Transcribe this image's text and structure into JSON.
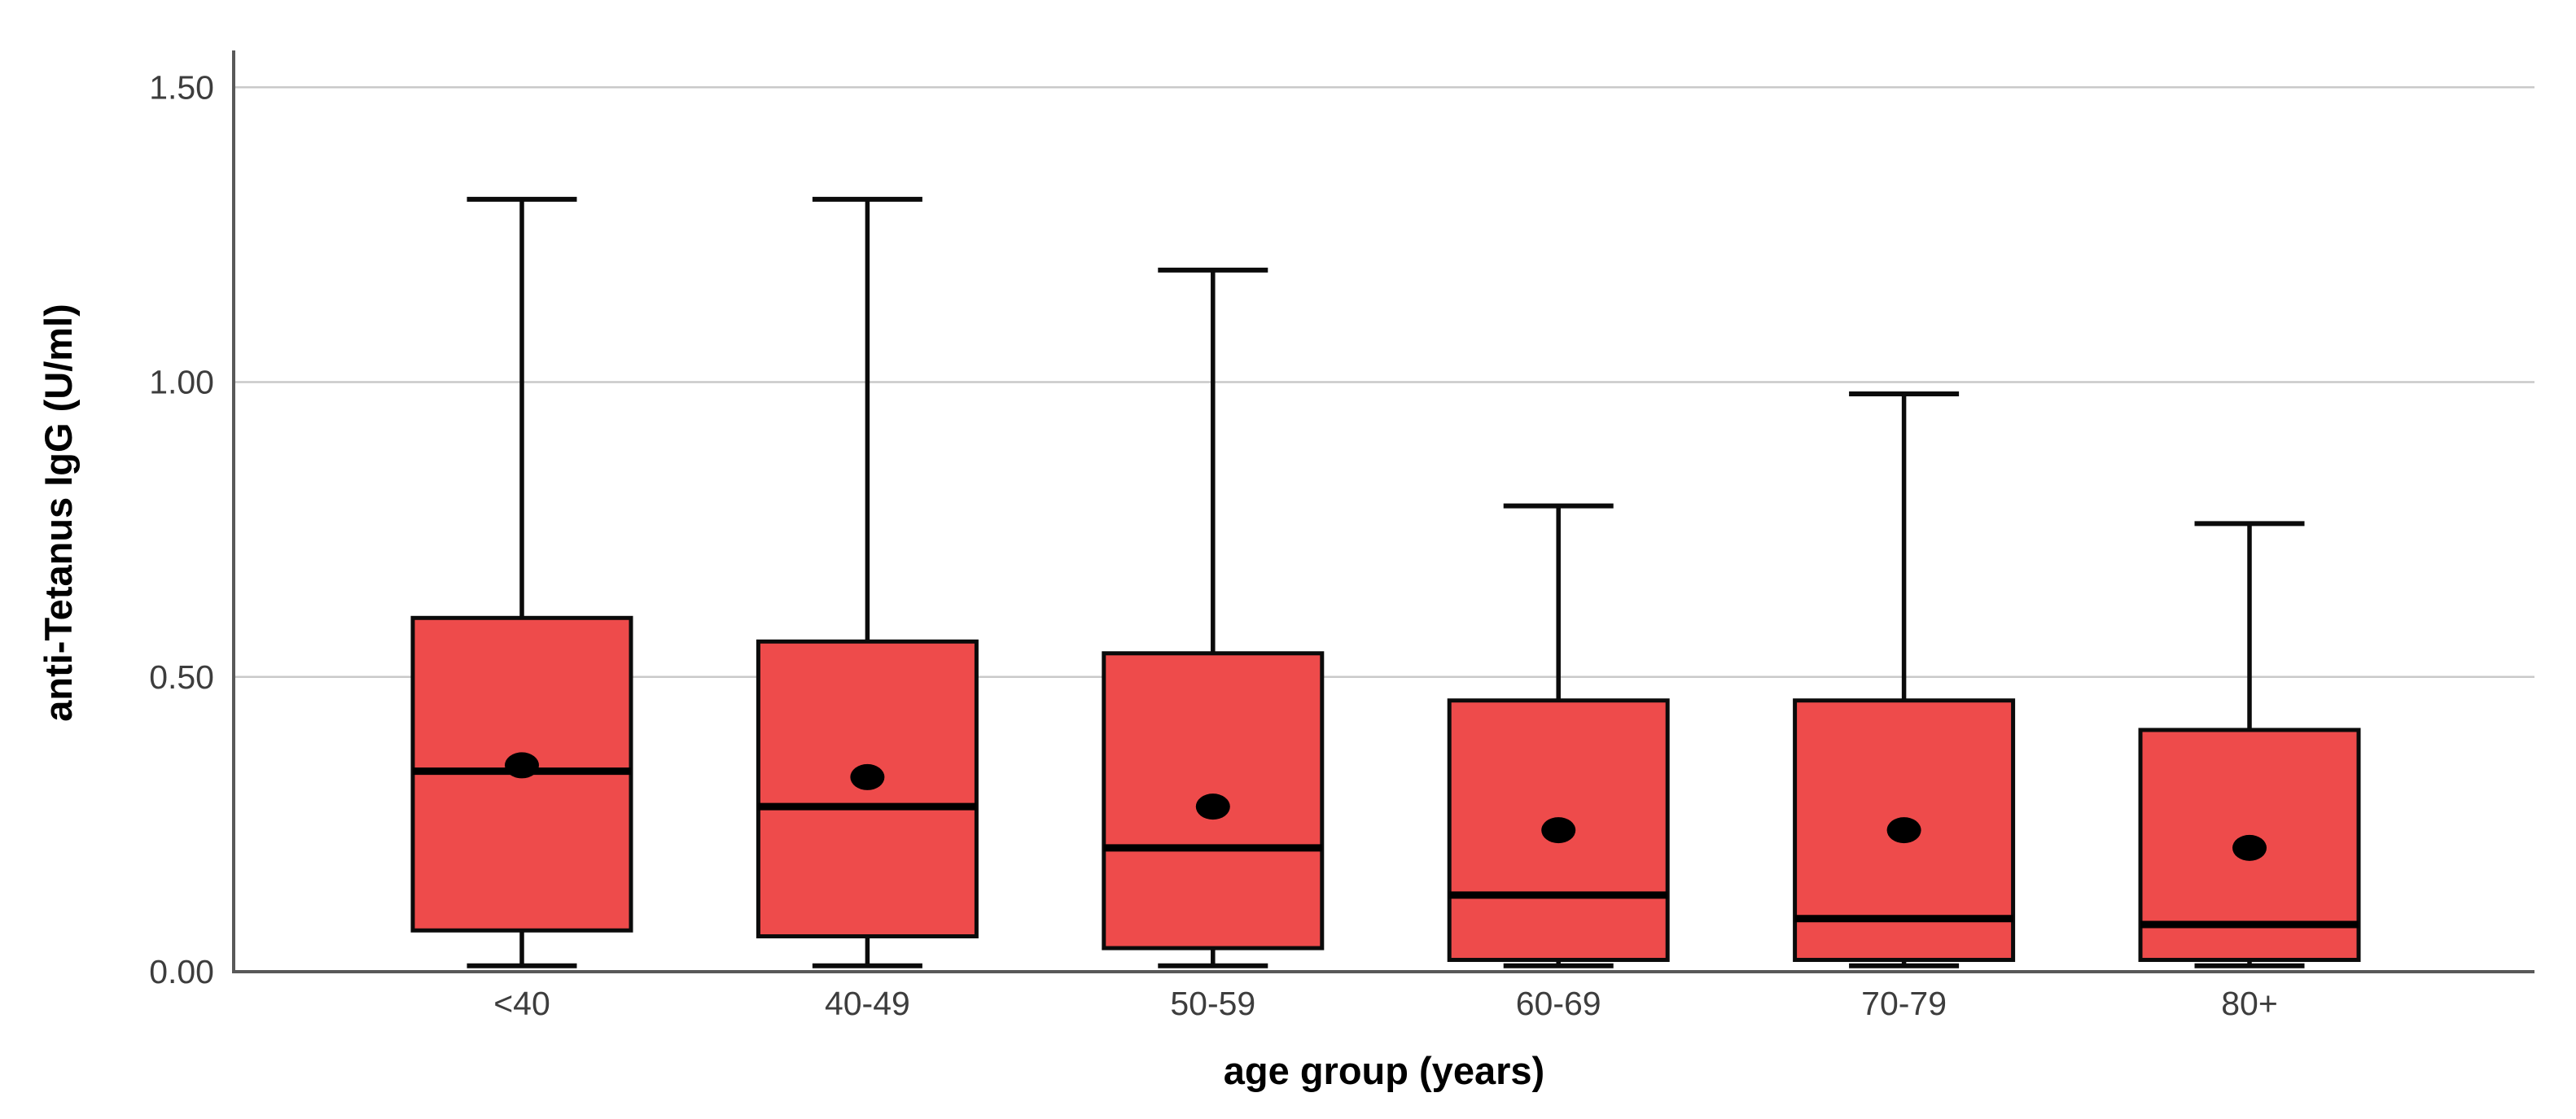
{
  "figure": {
    "background": "#ffffff",
    "y_axis": {
      "title": "anti-Tetanus IgG (U/ml)",
      "tick_labels": [
        "0.00",
        "0.50",
        "1.00",
        "1.50"
      ],
      "tick_values": [
        0.0,
        0.5,
        1.0,
        1.5
      ]
    },
    "x_axis": {
      "title": "age group (years)",
      "categories": [
        "<40",
        "40-49",
        "50-59",
        "60-69",
        "70-79",
        "80+"
      ]
    },
    "colors": {
      "box_fill": "#ee4b4b",
      "box_stroke": "#0b0b0b",
      "median_line": "#000000",
      "mean_dot": "#000000",
      "gridline": "#c9c9c9",
      "axis_line": "#595959",
      "tick_label": "#3d3d3d",
      "axis_title": "#000000"
    }
  },
  "chart_data": {
    "type": "boxplot",
    "title": "",
    "xlabel": "age group (years)",
    "ylabel": "anti-Tetanus IgG (U/ml)",
    "ylim": [
      0,
      1.56
    ],
    "yticks": [
      0.0,
      0.5,
      1.0,
      1.5
    ],
    "ytick_labels": [
      "0.00",
      "0.50",
      "1.00",
      "1.50"
    ],
    "grid": "horizontal",
    "legend": "none",
    "categories": [
      "<40",
      "40-49",
      "50-59",
      "60-69",
      "70-79",
      "80+"
    ],
    "series": [
      {
        "category": "<40",
        "min": 0.01,
        "q1": 0.07,
        "median": 0.34,
        "mean": 0.35,
        "q3": 0.6,
        "max": 1.31
      },
      {
        "category": "40-49",
        "min": 0.01,
        "q1": 0.06,
        "median": 0.28,
        "mean": 0.33,
        "q3": 0.56,
        "max": 1.31
      },
      {
        "category": "50-59",
        "min": 0.01,
        "q1": 0.04,
        "median": 0.21,
        "mean": 0.28,
        "q3": 0.54,
        "max": 1.19
      },
      {
        "category": "60-69",
        "min": 0.01,
        "q1": 0.02,
        "median": 0.13,
        "mean": 0.24,
        "q3": 0.46,
        "max": 0.79
      },
      {
        "category": "70-79",
        "min": 0.01,
        "q1": 0.02,
        "median": 0.09,
        "mean": 0.24,
        "q3": 0.46,
        "max": 0.98
      },
      {
        "category": "80+",
        "min": 0.01,
        "q1": 0.02,
        "median": 0.08,
        "mean": 0.21,
        "q3": 0.41,
        "max": 0.76
      }
    ]
  }
}
